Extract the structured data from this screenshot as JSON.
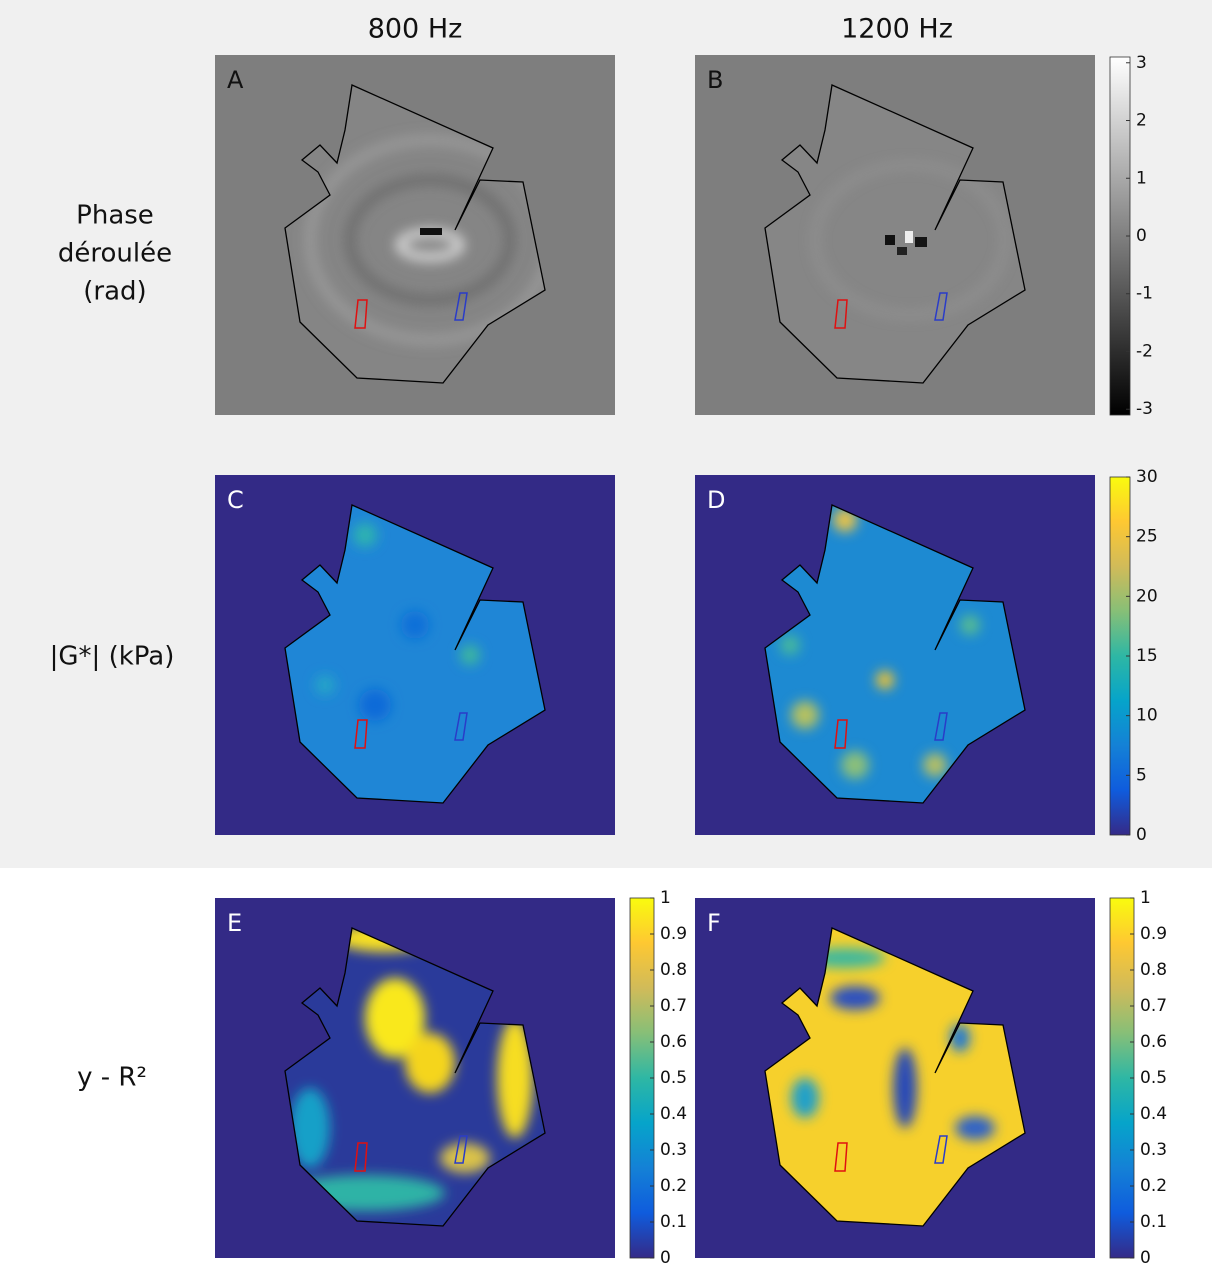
{
  "columns": [
    "800 Hz",
    "1200 Hz"
  ],
  "rows": [
    {
      "label": [
        "Phase",
        "déroulée",
        "(rad)"
      ]
    },
    {
      "label": [
        "|G*| (kPa)"
      ]
    },
    {
      "label": [
        "y - R²"
      ]
    }
  ],
  "panels": [
    "A",
    "B",
    "C",
    "D",
    "E",
    "F"
  ],
  "colorbars": [
    {
      "colormap": "gray",
      "lim": [
        -3.1,
        3.1
      ],
      "ticks": [
        -3,
        -2,
        -1,
        0,
        1,
        2,
        3
      ]
    },
    {
      "colormap": "parula",
      "lim": [
        0,
        30
      ],
      "ticks": [
        0,
        5,
        10,
        15,
        20,
        25,
        30
      ]
    },
    {
      "colormap": "parula",
      "lim": [
        0,
        1
      ],
      "ticks": [
        0,
        0.1,
        0.2,
        0.3,
        0.4,
        0.5,
        0.6,
        0.7,
        0.8,
        0.9,
        1
      ]
    },
    {
      "colormap": "parula",
      "lim": [
        0,
        1
      ],
      "ticks": [
        0,
        0.1,
        0.2,
        0.3,
        0.4,
        0.5,
        0.6,
        0.7,
        0.8,
        0.9,
        1
      ]
    }
  ]
}
